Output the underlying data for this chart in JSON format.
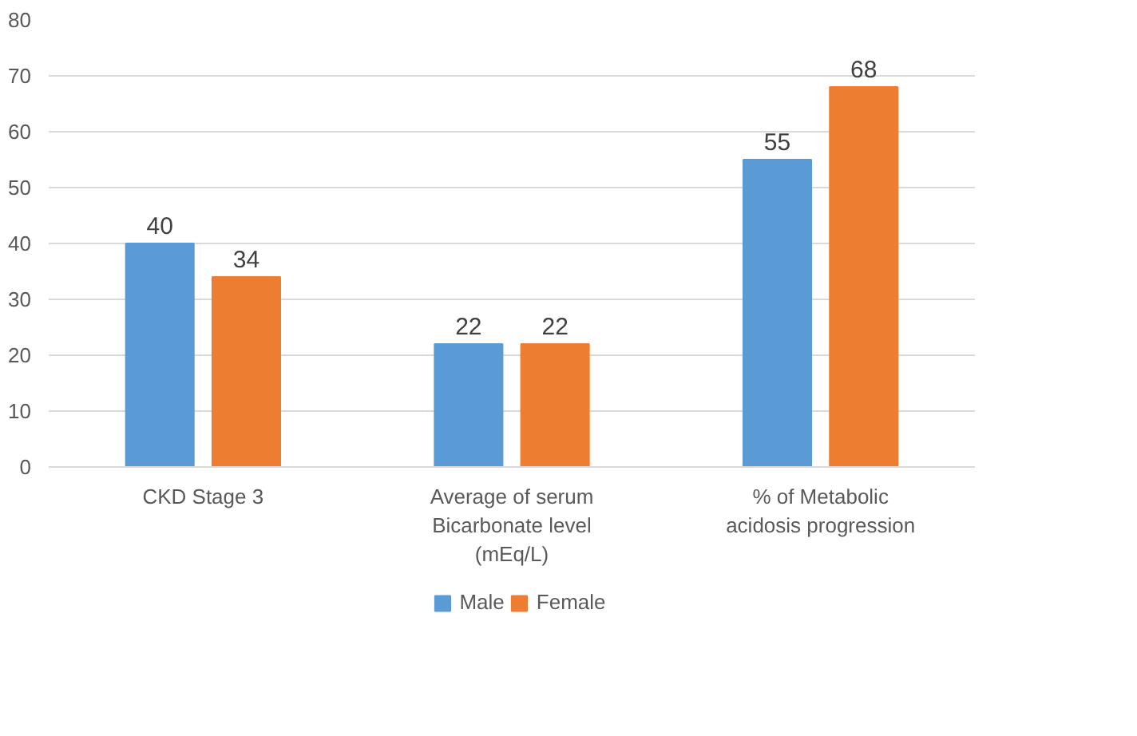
{
  "chart_data": {
    "type": "bar",
    "categories": [
      "CKD Stage 3",
      "Average of serum Bicarbonate level (mEq/L)",
      "% of Metabolic acidosis progression"
    ],
    "series": [
      {
        "name": "Male",
        "color": "#5b9bd5",
        "values": [
          40,
          22,
          55
        ]
      },
      {
        "name": "Female",
        "color": "#ed7d31",
        "values": [
          34,
          22,
          68
        ]
      }
    ],
    "ylim": [
      0,
      80
    ],
    "yticks": [
      0,
      10,
      20,
      30,
      40,
      50,
      60,
      70,
      80
    ],
    "grid": "y",
    "legend": "bottom",
    "data_labels": true
  }
}
